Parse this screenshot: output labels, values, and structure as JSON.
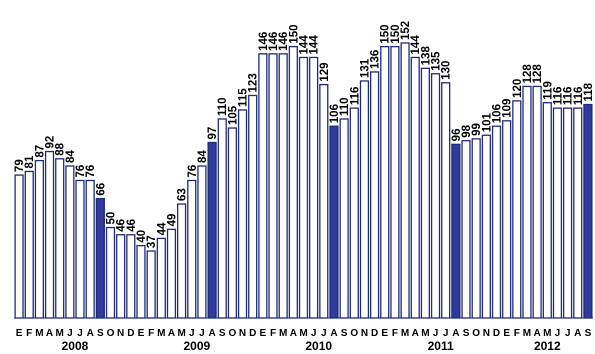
{
  "chart_data": {
    "type": "bar",
    "title": "",
    "xlabel": "",
    "ylabel": "",
    "ylim": [
      0,
      160
    ],
    "grid": false,
    "legend": "none",
    "colors": {
      "bar_fill": "#ffffff",
      "bar_stroke": "#1f2a7a",
      "highlight_fill": "#2f3a9b"
    },
    "categories": [
      "E",
      "F",
      "M",
      "A",
      "M",
      "J",
      "J",
      "A",
      "S",
      "O",
      "N",
      "D",
      "E",
      "F",
      "M",
      "A",
      "M",
      "J",
      "J",
      "A",
      "S",
      "O",
      "N",
      "D",
      "E",
      "F",
      "M",
      "A",
      "M",
      "J",
      "J",
      "A",
      "S",
      "O",
      "N",
      "D",
      "E",
      "F",
      "M",
      "A",
      "M",
      "J",
      "J",
      "A",
      "S",
      "O",
      "N",
      "D",
      "E",
      "F",
      "M",
      "A",
      "M",
      "J",
      "J",
      "A",
      "S"
    ],
    "values": [
      79,
      81,
      87,
      92,
      88,
      84,
      76,
      76,
      66,
      50,
      46,
      46,
      40,
      37,
      44,
      49,
      63,
      76,
      84,
      97,
      110,
      105,
      115,
      123,
      146,
      146,
      146,
      150,
      144,
      144,
      129,
      106,
      110,
      116,
      131,
      136,
      150,
      150,
      152,
      144,
      138,
      135,
      130,
      96,
      98,
      99,
      101,
      106,
      109,
      120,
      128,
      128,
      119,
      116,
      116,
      116,
      118
    ],
    "highlighted": [
      8,
      19,
      31,
      43,
      56
    ],
    "years": [
      {
        "label": "2008",
        "start": 0,
        "end": 11
      },
      {
        "label": "2009",
        "start": 12,
        "end": 23
      },
      {
        "label": "2010",
        "start": 24,
        "end": 35
      },
      {
        "label": "2011",
        "start": 36,
        "end": 47
      },
      {
        "label": "2012",
        "start": 48,
        "end": 56
      }
    ]
  }
}
